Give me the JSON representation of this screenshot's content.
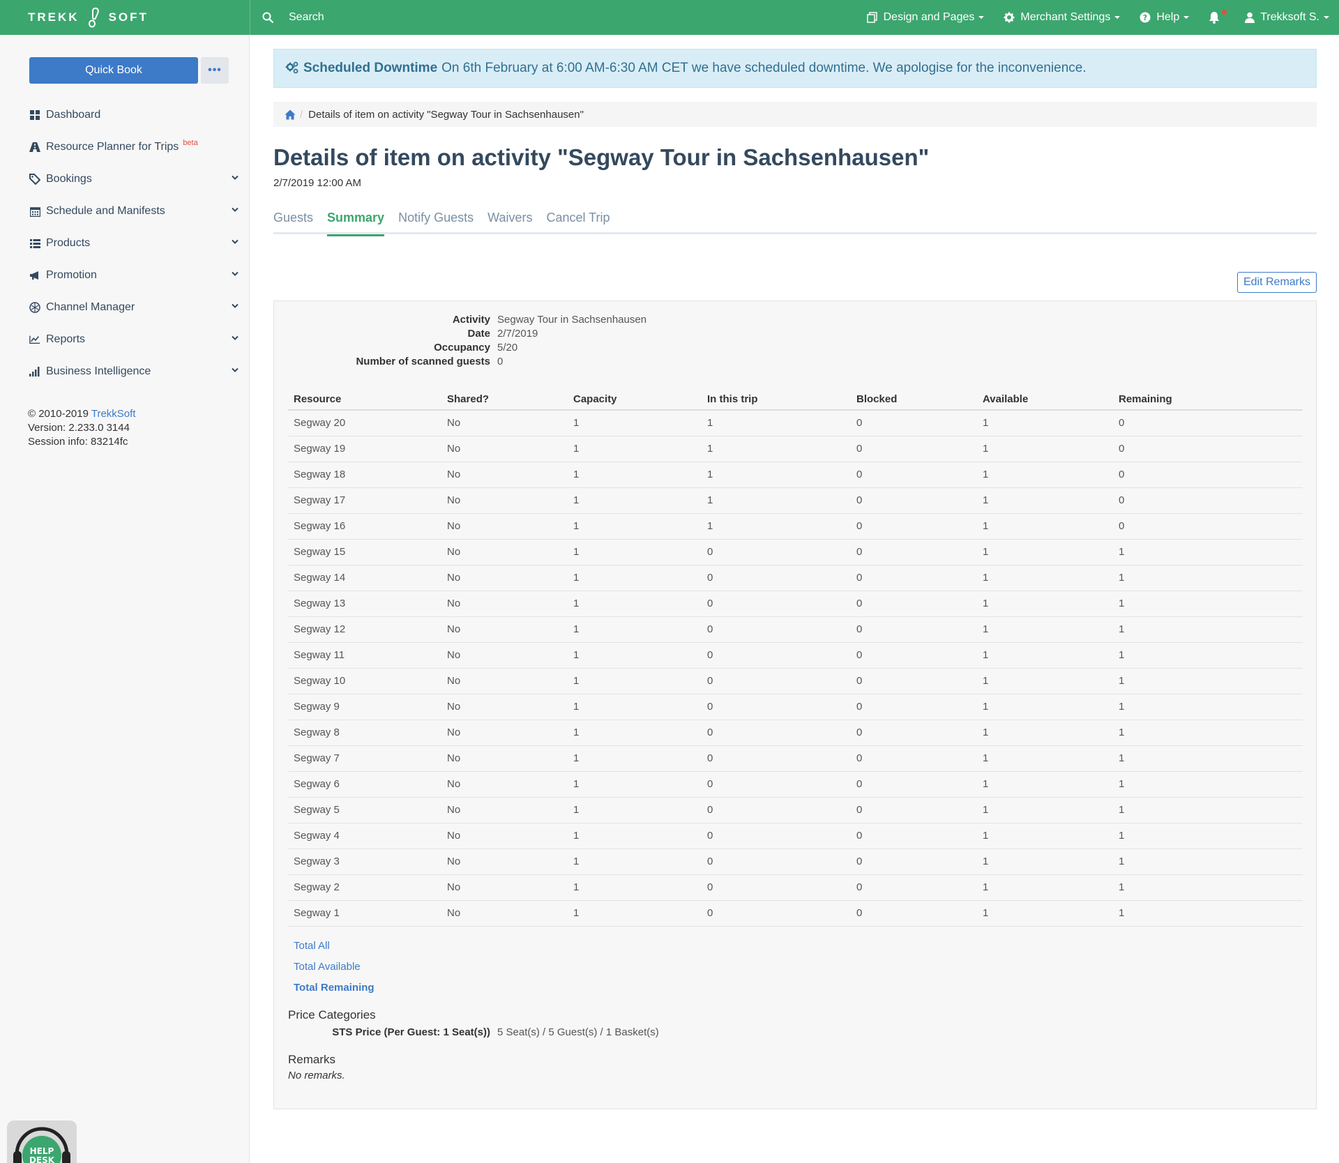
{
  "brand": {
    "left": "TREKK",
    "right": "SOFT"
  },
  "search": {
    "label": "Search"
  },
  "topnav": {
    "design": "Design and Pages",
    "merchant": "Merchant Settings",
    "help": "Help",
    "user": "Trekksoft S."
  },
  "sidebar": {
    "quick_book": "Quick Book",
    "more": "•••",
    "items": [
      {
        "label": "Dashboard",
        "icon": "dashboard-icon",
        "chevron": false
      },
      {
        "label": "Resource Planner for Trips",
        "icon": "road-icon",
        "chevron": false,
        "badge": "beta"
      },
      {
        "label": "Bookings",
        "icon": "tag-icon",
        "chevron": true
      },
      {
        "label": "Schedule and Manifests",
        "icon": "calendar-icon",
        "chevron": true
      },
      {
        "label": "Products",
        "icon": "list-icon",
        "chevron": true
      },
      {
        "label": "Promotion",
        "icon": "megaphone-icon",
        "chevron": true
      },
      {
        "label": "Channel Manager",
        "icon": "network-icon",
        "chevron": true
      },
      {
        "label": "Reports",
        "icon": "line-chart-icon",
        "chevron": true
      },
      {
        "label": "Business Intelligence",
        "icon": "bar-chart-icon",
        "chevron": true
      }
    ],
    "footer": {
      "copyright": "© 2010-2019",
      "company": "TrekkSoft",
      "version": "Version: 2.233.0 3144",
      "session": "Session info: 83214fc"
    },
    "helpdesk": "HELP DESK"
  },
  "alert": {
    "title": "Scheduled Downtime",
    "message": "On 6th February at 6:00 AM-6:30 AM CET we have scheduled downtime. We apologise for the inconvenience."
  },
  "breadcrumb": {
    "current": "Details of item on activity \"Segway Tour in Sachsenhausen\""
  },
  "page": {
    "title": "Details of item on activity \"Segway Tour in Sachsenhausen\"",
    "date": "2/7/2019 12:00 AM"
  },
  "tabs": [
    {
      "label": "Guests",
      "active": false
    },
    {
      "label": "Summary",
      "active": true
    },
    {
      "label": "Notify Guests",
      "active": false
    },
    {
      "label": "Waivers",
      "active": false
    },
    {
      "label": "Cancel Trip",
      "active": false
    }
  ],
  "edit_remarks": "Edit Remarks",
  "info": [
    {
      "label": "Activity",
      "value": "Segway Tour in Sachsenhausen"
    },
    {
      "label": "Date",
      "value": "2/7/2019"
    },
    {
      "label": "Occupancy",
      "value": "5/20"
    },
    {
      "label": "Number of scanned guests",
      "value": "0"
    }
  ],
  "table": {
    "headers": [
      "Resource",
      "Shared?",
      "Capacity",
      "In this trip",
      "Blocked",
      "Available",
      "Remaining"
    ],
    "rows": [
      [
        "Segway 20",
        "No",
        "1",
        "1",
        "0",
        "1",
        "0"
      ],
      [
        "Segway 19",
        "No",
        "1",
        "1",
        "0",
        "1",
        "0"
      ],
      [
        "Segway 18",
        "No",
        "1",
        "1",
        "0",
        "1",
        "0"
      ],
      [
        "Segway 17",
        "No",
        "1",
        "1",
        "0",
        "1",
        "0"
      ],
      [
        "Segway 16",
        "No",
        "1",
        "1",
        "0",
        "1",
        "0"
      ],
      [
        "Segway 15",
        "No",
        "1",
        "0",
        "0",
        "1",
        "1"
      ],
      [
        "Segway 14",
        "No",
        "1",
        "0",
        "0",
        "1",
        "1"
      ],
      [
        "Segway 13",
        "No",
        "1",
        "0",
        "0",
        "1",
        "1"
      ],
      [
        "Segway 12",
        "No",
        "1",
        "0",
        "0",
        "1",
        "1"
      ],
      [
        "Segway 11",
        "No",
        "1",
        "0",
        "0",
        "1",
        "1"
      ],
      [
        "Segway 10",
        "No",
        "1",
        "0",
        "0",
        "1",
        "1"
      ],
      [
        "Segway 9",
        "No",
        "1",
        "0",
        "0",
        "1",
        "1"
      ],
      [
        "Segway 8",
        "No",
        "1",
        "0",
        "0",
        "1",
        "1"
      ],
      [
        "Segway 7",
        "No",
        "1",
        "0",
        "0",
        "1",
        "1"
      ],
      [
        "Segway 6",
        "No",
        "1",
        "0",
        "0",
        "1",
        "1"
      ],
      [
        "Segway 5",
        "No",
        "1",
        "0",
        "0",
        "1",
        "1"
      ],
      [
        "Segway 4",
        "No",
        "1",
        "0",
        "0",
        "1",
        "1"
      ],
      [
        "Segway 3",
        "No",
        "1",
        "0",
        "0",
        "1",
        "1"
      ],
      [
        "Segway 2",
        "No",
        "1",
        "0",
        "0",
        "1",
        "1"
      ],
      [
        "Segway 1",
        "No",
        "1",
        "0",
        "0",
        "1",
        "1"
      ]
    ]
  },
  "totals": {
    "all": "Total All",
    "available": "Total Available",
    "remaining": "Total Remaining"
  },
  "price_categories": {
    "heading": "Price Categories",
    "label": "STS Price (Per Guest: 1 Seat(s))",
    "value": "5 Seat(s) / 5 Guest(s) / 1 Basket(s)"
  },
  "remarks": {
    "heading": "Remarks",
    "value": "No remarks."
  },
  "colors": {
    "brand_green": "#3ca66f",
    "primary_blue": "#3d7ac8",
    "alert_bg": "#d9edf7",
    "notification_red": "#e74c3c"
  }
}
